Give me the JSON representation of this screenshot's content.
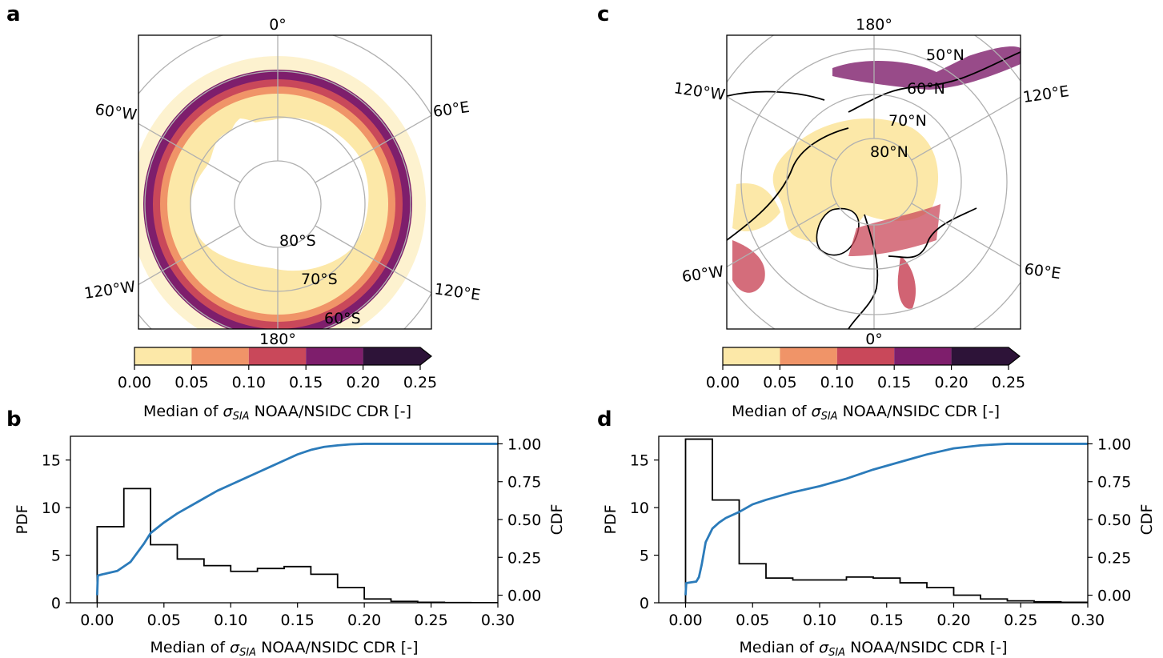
{
  "panels": {
    "a": {
      "letter": "a"
    },
    "b": {
      "letter": "b"
    },
    "c": {
      "letter": "c"
    },
    "d": {
      "letter": "d"
    }
  },
  "map_a": {
    "hemisphere": "south",
    "meridian_labels": [
      "0°",
      "60°E",
      "120°E",
      "180°",
      "120°W",
      "60°W"
    ],
    "parallel_labels": [
      "80°S",
      "70°S",
      "60°S"
    ]
  },
  "map_c": {
    "hemisphere": "north",
    "meridian_labels": [
      "180°",
      "120°E",
      "60°E",
      "0°",
      "60°W",
      "120°W"
    ],
    "parallel_labels": [
      "80°N",
      "70°N",
      "60°N",
      "50°N"
    ]
  },
  "colorbar": {
    "ticks": [
      "0.00",
      "0.05",
      "0.10",
      "0.15",
      "0.20",
      "0.25"
    ],
    "colors": [
      "#fce8a8",
      "#f09468",
      "#c9485a",
      "#7e1e6c",
      "#2d1338"
    ],
    "extend": "max",
    "label_prefix": "Median of ",
    "label_symbol": "σ",
    "label_sub": "SIA",
    "label_suffix": " NOAA/NSIDC CDR [-]"
  },
  "chart_data": [
    {
      "type": "line",
      "panel": "b",
      "xlabel_prefix": "Median of ",
      "xlabel_symbol": "σ",
      "xlabel_sub": "SIA",
      "xlabel_suffix": " NOAA/NSIDC CDR [-]",
      "ylabel": "PDF",
      "y2label": "CDF",
      "xlim": [
        -0.02,
        0.3
      ],
      "ylim": [
        0,
        17.5
      ],
      "y2lim": [
        -0.05,
        1.05
      ],
      "xticks": [
        "0.00",
        "0.05",
        "0.10",
        "0.15",
        "0.20",
        "0.25",
        "0.30"
      ],
      "xtick_values": [
        0,
        0.05,
        0.1,
        0.15,
        0.2,
        0.25,
        0.3
      ],
      "yticks": [
        "0",
        "5",
        "10",
        "15"
      ],
      "ytick_values": [
        0,
        5,
        10,
        15
      ],
      "y2ticks": [
        "0.00",
        "0.25",
        "0.50",
        "0.75",
        "1.00"
      ],
      "y2tick_values": [
        0,
        0.25,
        0.5,
        0.75,
        1.0
      ],
      "hist_edges": [
        0,
        0.02,
        0.04,
        0.06,
        0.08,
        0.1,
        0.12,
        0.14,
        0.16,
        0.18,
        0.2,
        0.22,
        0.24,
        0.26,
        0.28,
        0.3
      ],
      "hist_values": [
        8.0,
        12.0,
        6.1,
        4.6,
        3.9,
        3.3,
        3.6,
        3.8,
        3.0,
        1.6,
        0.4,
        0.15,
        0.05,
        0.02,
        0.01
      ],
      "cdf_x": [
        0,
        0.0005,
        0.005,
        0.015,
        0.02,
        0.025,
        0.03,
        0.035,
        0.04,
        0.05,
        0.06,
        0.07,
        0.08,
        0.09,
        0.1,
        0.11,
        0.12,
        0.13,
        0.14,
        0.15,
        0.16,
        0.17,
        0.18,
        0.19,
        0.2,
        0.22,
        0.25,
        0.3
      ],
      "cdf_y": [
        0.0,
        0.13,
        0.14,
        0.16,
        0.19,
        0.22,
        0.28,
        0.34,
        0.41,
        0.48,
        0.54,
        0.59,
        0.64,
        0.69,
        0.73,
        0.77,
        0.81,
        0.85,
        0.89,
        0.93,
        0.96,
        0.98,
        0.99,
        0.997,
        1.0,
        1.0,
        1.0,
        1.0
      ]
    },
    {
      "type": "line",
      "panel": "d",
      "xlabel_prefix": "Median of ",
      "xlabel_symbol": "σ",
      "xlabel_sub": "SIA",
      "xlabel_suffix": " NOAA/NSIDC CDR [-]",
      "ylabel": "PDF",
      "y2label": "CDF",
      "xlim": [
        -0.02,
        0.3
      ],
      "ylim": [
        0,
        17.5
      ],
      "y2lim": [
        -0.05,
        1.05
      ],
      "xticks": [
        "0.00",
        "0.05",
        "0.10",
        "0.15",
        "0.20",
        "0.25",
        "0.30"
      ],
      "xtick_values": [
        0,
        0.05,
        0.1,
        0.15,
        0.2,
        0.25,
        0.3
      ],
      "yticks": [
        "0",
        "5",
        "10",
        "15"
      ],
      "ytick_values": [
        0,
        5,
        10,
        15
      ],
      "y2ticks": [
        "0.00",
        "0.25",
        "0.50",
        "0.75",
        "1.00"
      ],
      "y2tick_values": [
        0,
        0.25,
        0.5,
        0.75,
        1.0
      ],
      "hist_edges": [
        0,
        0.02,
        0.04,
        0.06,
        0.08,
        0.1,
        0.12,
        0.14,
        0.16,
        0.18,
        0.2,
        0.22,
        0.24,
        0.26,
        0.28,
        0.3
      ],
      "hist_values": [
        17.2,
        10.8,
        4.1,
        2.6,
        2.4,
        2.4,
        2.7,
        2.6,
        2.1,
        1.6,
        0.8,
        0.4,
        0.2,
        0.1,
        0.05
      ],
      "cdf_x": [
        0,
        0.0005,
        0.008,
        0.01,
        0.012,
        0.015,
        0.02,
        0.025,
        0.03,
        0.04,
        0.05,
        0.06,
        0.08,
        0.1,
        0.12,
        0.14,
        0.16,
        0.18,
        0.2,
        0.22,
        0.24,
        0.27,
        0.3
      ],
      "cdf_y": [
        0.0,
        0.08,
        0.09,
        0.12,
        0.2,
        0.35,
        0.44,
        0.48,
        0.51,
        0.55,
        0.6,
        0.63,
        0.68,
        0.72,
        0.77,
        0.83,
        0.88,
        0.93,
        0.97,
        0.99,
        1.0,
        1.0,
        1.0
      ]
    }
  ]
}
